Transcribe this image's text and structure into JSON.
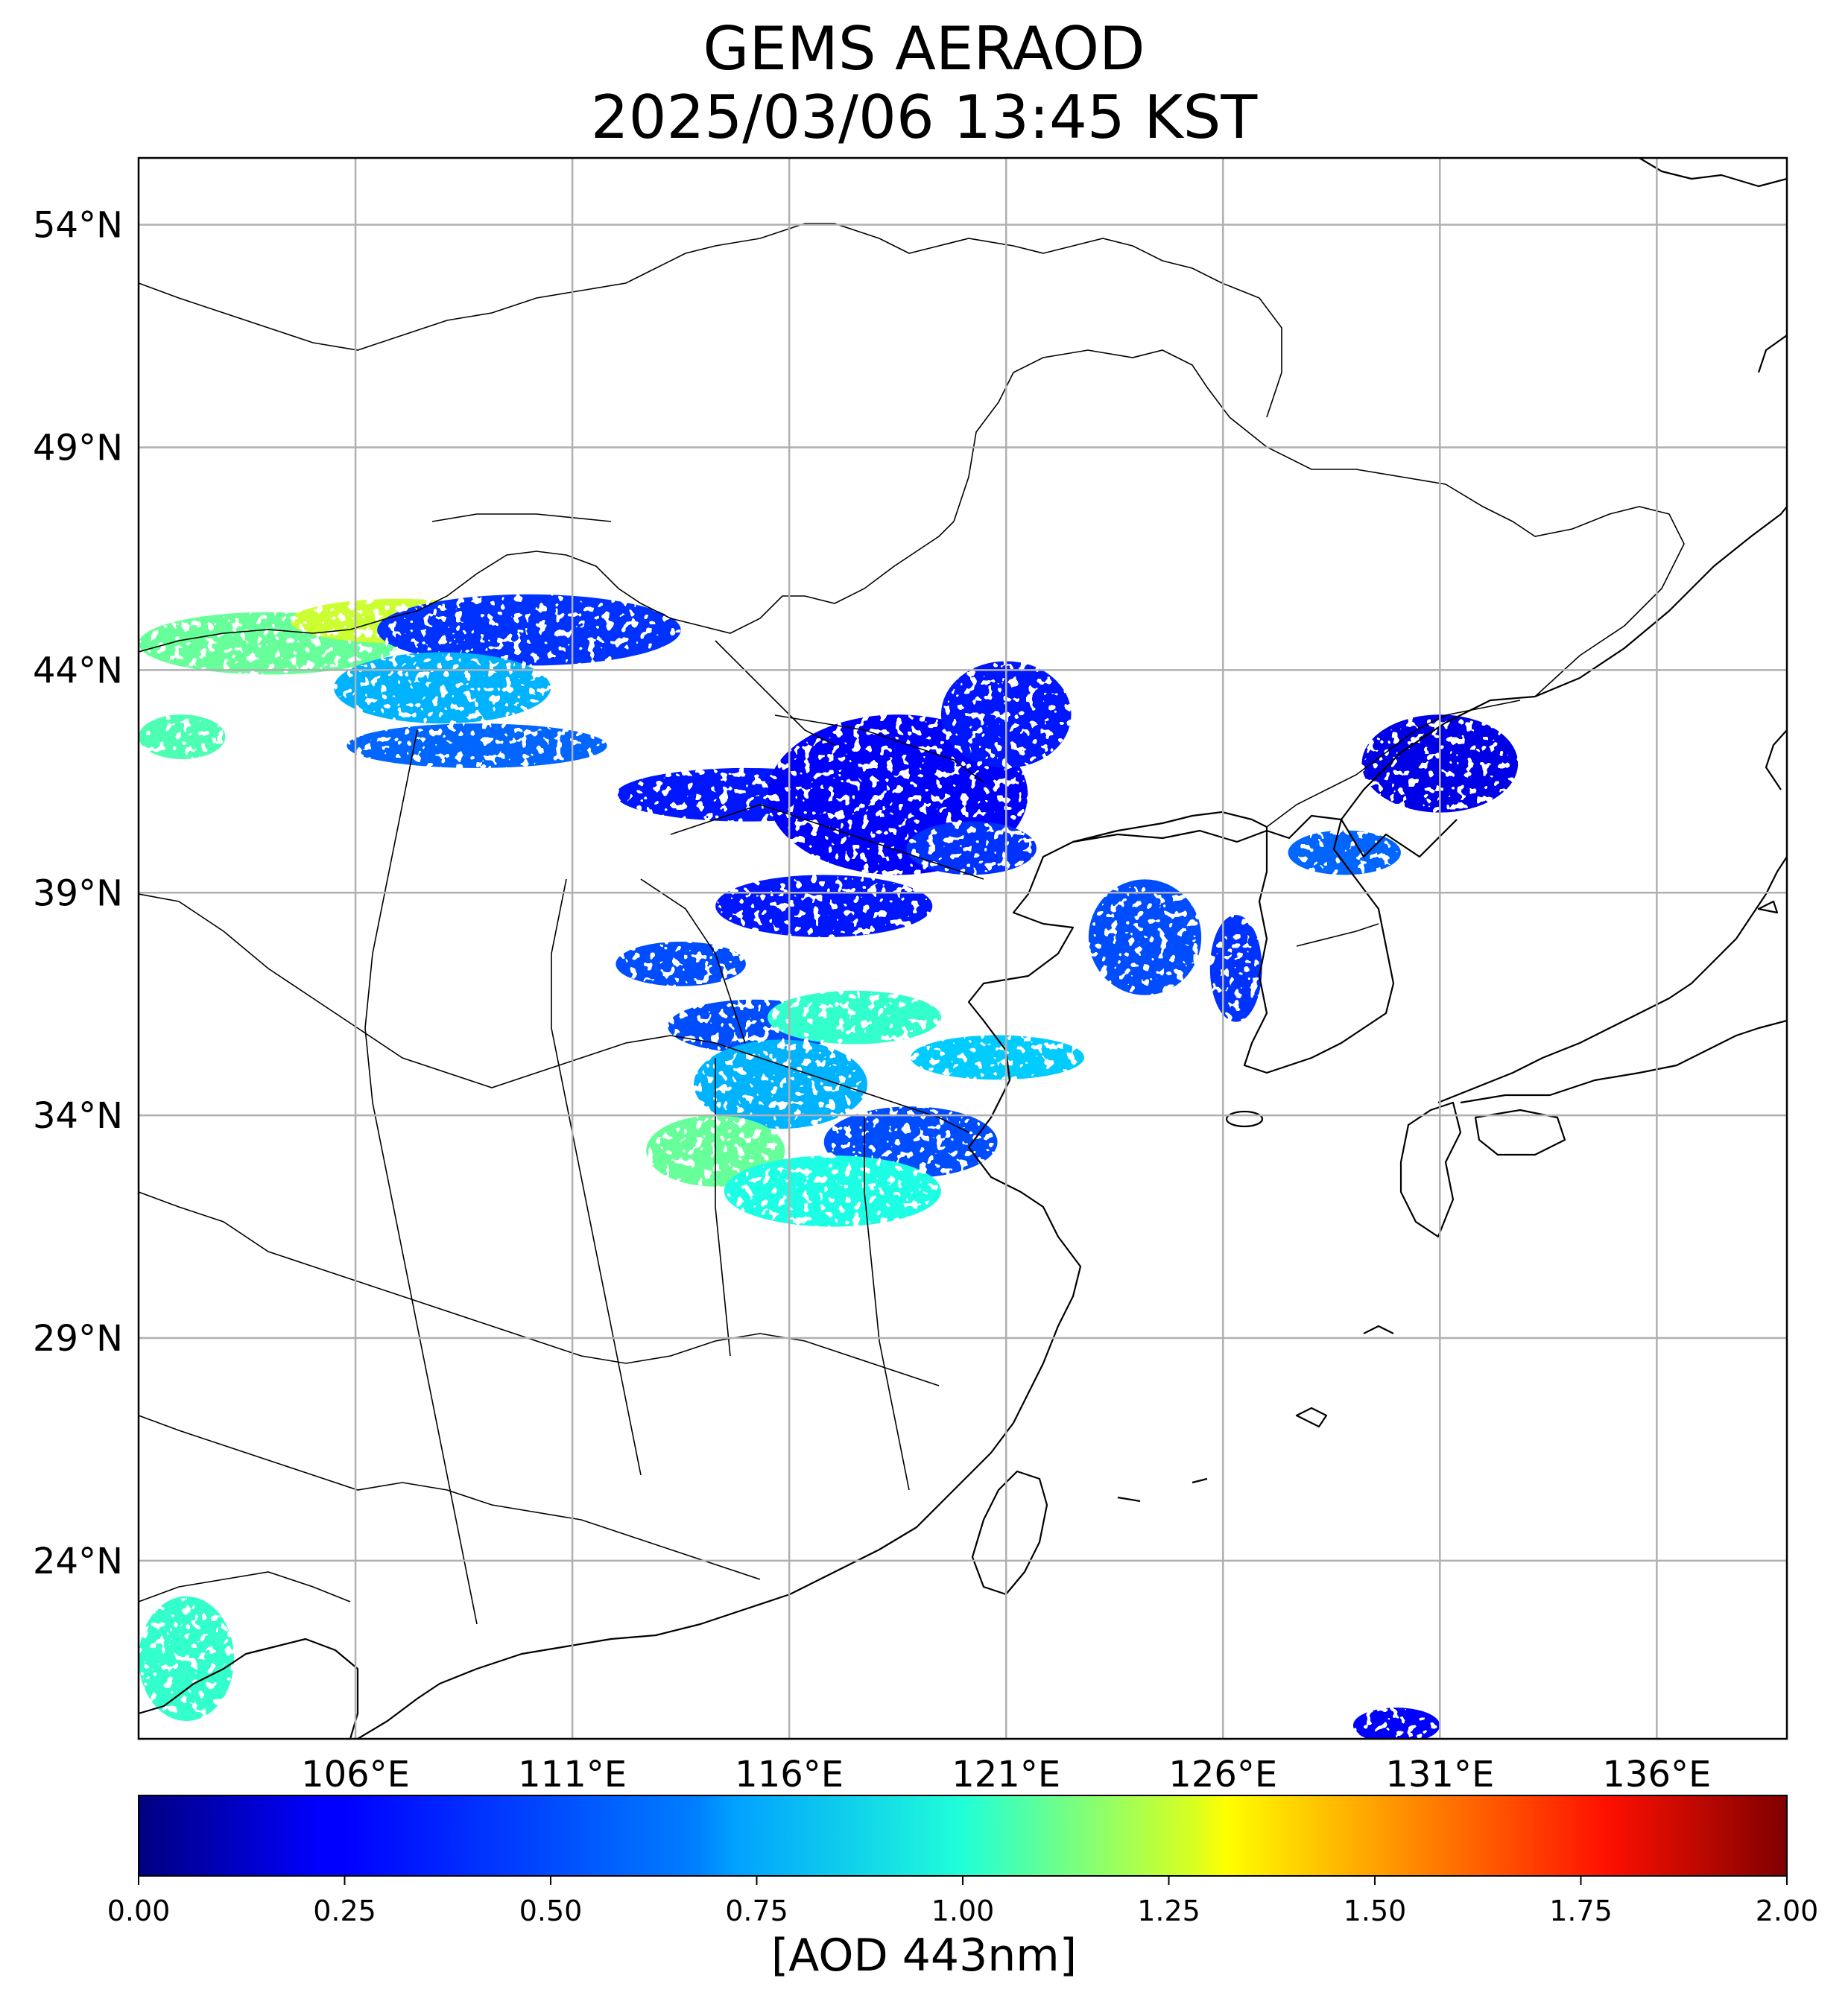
{
  "title": {
    "line1": "GEMS AERAOD",
    "line2": "2025/03/06 13:45 KST"
  },
  "map": {
    "projection": "PlateCarree",
    "lon_range": [
      101,
      139
    ],
    "lat_range": [
      20,
      55.5
    ],
    "gridlines": true,
    "lon_ticks": [
      {
        "value": 106,
        "label": "106°E"
      },
      {
        "value": 111,
        "label": "111°E"
      },
      {
        "value": 116,
        "label": "116°E"
      },
      {
        "value": 121,
        "label": "121°E"
      },
      {
        "value": 126,
        "label": "126°E"
      },
      {
        "value": 131,
        "label": "131°E"
      },
      {
        "value": 136,
        "label": "136°E"
      }
    ],
    "lat_ticks": [
      {
        "value": 54,
        "label": "54°N"
      },
      {
        "value": 49,
        "label": "49°N"
      },
      {
        "value": 44,
        "label": "44°N"
      },
      {
        "value": 39,
        "label": "39°N"
      },
      {
        "value": 34,
        "label": "34°N"
      },
      {
        "value": 29,
        "label": "29°N"
      },
      {
        "value": 24,
        "label": "24°N"
      }
    ]
  },
  "colorbar": {
    "colormap": "jet",
    "range": [
      0,
      2
    ],
    "ticks": [
      "0.00",
      "0.25",
      "0.50",
      "0.75",
      "1.00",
      "1.25",
      "1.50",
      "1.75",
      "2.00"
    ],
    "label": "[AOD 443nm]"
  },
  "aod_regions": [
    {
      "lon": 104.0,
      "lat": 44.6,
      "rx": 3.0,
      "ry": 0.7,
      "aod": 0.95
    },
    {
      "lon": 107.0,
      "lat": 45.1,
      "rx": 2.5,
      "ry": 0.5,
      "aod": 1.15
    },
    {
      "lon": 110.0,
      "lat": 44.9,
      "rx": 3.5,
      "ry": 0.8,
      "aod": 0.35
    },
    {
      "lon": 108.0,
      "lat": 43.6,
      "rx": 2.5,
      "ry": 0.8,
      "aod": 0.6
    },
    {
      "lon": 108.8,
      "lat": 42.3,
      "rx": 3.0,
      "ry": 0.5,
      "aod": 0.45
    },
    {
      "lon": 102.0,
      "lat": 42.5,
      "rx": 1.0,
      "ry": 0.5,
      "aod": 0.9
    },
    {
      "lon": 115.0,
      "lat": 41.2,
      "rx": 3.0,
      "ry": 0.6,
      "aod": 0.3
    },
    {
      "lon": 118.5,
      "lat": 41.2,
      "rx": 3.0,
      "ry": 1.8,
      "aod": 0.25
    },
    {
      "lon": 121.0,
      "lat": 43.0,
      "rx": 1.5,
      "ry": 1.2,
      "aod": 0.3
    },
    {
      "lon": 120.2,
      "lat": 40.0,
      "rx": 1.5,
      "ry": 0.6,
      "aod": 0.35
    },
    {
      "lon": 116.8,
      "lat": 38.7,
      "rx": 2.5,
      "ry": 0.7,
      "aod": 0.3
    },
    {
      "lon": 124.2,
      "lat": 38.0,
      "rx": 1.3,
      "ry": 1.3,
      "aod": 0.4
    },
    {
      "lon": 126.3,
      "lat": 37.3,
      "rx": 0.6,
      "ry": 1.2,
      "aod": 0.35
    },
    {
      "lon": 131.0,
      "lat": 41.9,
      "rx": 1.8,
      "ry": 1.1,
      "aod": 0.2
    },
    {
      "lon": 128.8,
      "lat": 39.9,
      "rx": 1.3,
      "ry": 0.5,
      "aod": 0.45
    },
    {
      "lon": 113.5,
      "lat": 37.4,
      "rx": 1.5,
      "ry": 0.5,
      "aod": 0.4
    },
    {
      "lon": 115.2,
      "lat": 36.0,
      "rx": 2.0,
      "ry": 0.6,
      "aod": 0.4
    },
    {
      "lon": 117.5,
      "lat": 36.2,
      "rx": 2.0,
      "ry": 0.6,
      "aod": 0.85
    },
    {
      "lon": 120.8,
      "lat": 35.3,
      "rx": 2.0,
      "ry": 0.5,
      "aod": 0.65
    },
    {
      "lon": 115.8,
      "lat": 34.7,
      "rx": 2.0,
      "ry": 1.0,
      "aod": 0.6
    },
    {
      "lon": 118.8,
      "lat": 33.4,
      "rx": 2.0,
      "ry": 0.8,
      "aod": 0.4
    },
    {
      "lon": 114.3,
      "lat": 33.2,
      "rx": 1.6,
      "ry": 0.8,
      "aod": 0.95
    },
    {
      "lon": 117.0,
      "lat": 32.3,
      "rx": 2.5,
      "ry": 0.8,
      "aod": 0.8
    },
    {
      "lon": 102.1,
      "lat": 21.8,
      "rx": 1.1,
      "ry": 1.4,
      "aod": 0.85
    },
    {
      "lon": 130.0,
      "lat": 20.3,
      "rx": 1.0,
      "ry": 0.4,
      "aod": 0.25
    }
  ]
}
